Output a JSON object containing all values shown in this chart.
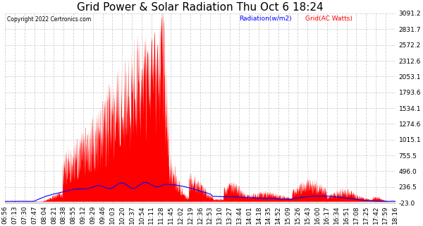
{
  "title": "Grid Power & Solar Radiation Thu Oct 6 18:24",
  "copyright": "Copyright 2022 Certronics.com",
  "legend_radiation": "Radiation(w/m2)",
  "legend_grid": "Grid(AC Watts)",
  "yticks": [
    3091.2,
    2831.7,
    2572.2,
    2312.6,
    2053.1,
    1793.6,
    1534.1,
    1274.6,
    1015.1,
    755.5,
    496.0,
    236.5,
    -23.0
  ],
  "ymin": -23.0,
  "ymax": 3091.2,
  "radiation_color": "#0000ff",
  "grid_color": "#ff0000",
  "background_color": "#ffffff",
  "plot_bg_color": "#ffffff",
  "grid_line_color": "#cccccc",
  "title_fontsize": 11,
  "tick_fontsize": 6.5,
  "x_labels": [
    "06:56",
    "07:13",
    "07:30",
    "07:47",
    "08:04",
    "08:21",
    "08:38",
    "08:55",
    "09:12",
    "09:29",
    "09:46",
    "10:03",
    "10:20",
    "10:37",
    "10:54",
    "11:11",
    "11:28",
    "11:45",
    "12:02",
    "12:19",
    "12:36",
    "12:53",
    "13:10",
    "13:27",
    "13:44",
    "14:01",
    "14:18",
    "14:35",
    "14:52",
    "15:09",
    "15:26",
    "15:43",
    "16:00",
    "16:17",
    "16:34",
    "16:51",
    "17:08",
    "17:25",
    "17:42",
    "17:59",
    "18:16"
  ]
}
